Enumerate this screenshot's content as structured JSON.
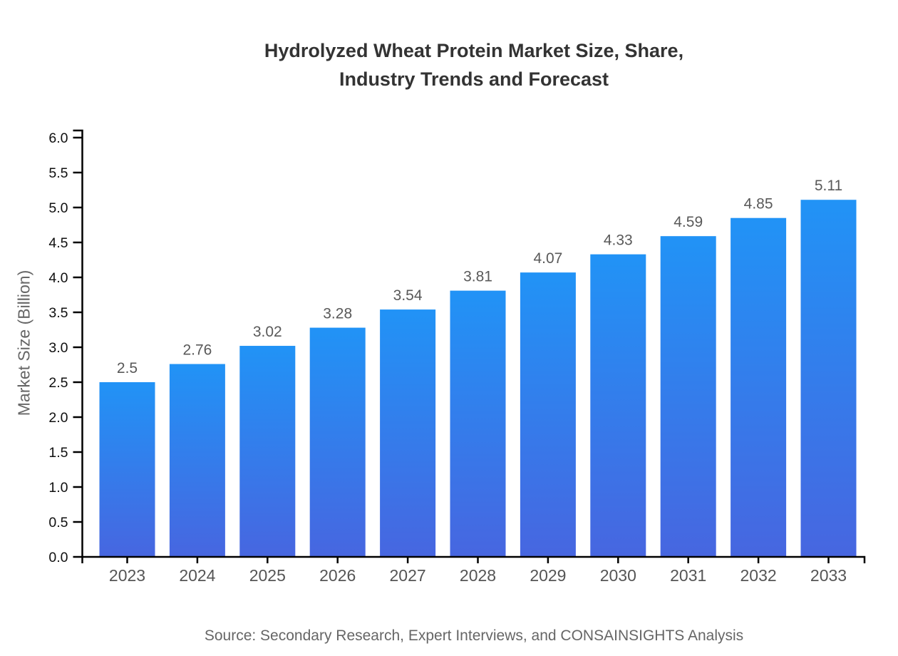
{
  "title": {
    "line1": "Hydrolyzed Wheat Protein Market Size, Share,",
    "line2": "Industry Trends and Forecast"
  },
  "source": "Source: Secondary Research, Expert Interviews, and CONSAINSIGHTS Analysis",
  "chart_data": {
    "type": "bar",
    "title": "Hydrolyzed Wheat Protein Market Size, Share, Industry Trends and Forecast",
    "categories": [
      "2023",
      "2024",
      "2025",
      "2026",
      "2027",
      "2028",
      "2029",
      "2030",
      "2031",
      "2032",
      "2033"
    ],
    "values": [
      2.5,
      2.76,
      3.02,
      3.28,
      3.54,
      3.81,
      4.07,
      4.33,
      4.59,
      4.85,
      5.11
    ],
    "value_labels": [
      "2.5",
      "2.76",
      "3.02",
      "3.28",
      "3.54",
      "3.81",
      "4.07",
      "4.33",
      "4.59",
      "4.85",
      "5.11"
    ],
    "xlabel": "",
    "ylabel": "Market Size (Billion)",
    "ylim": [
      0.0,
      6.0
    ],
    "ytick_step": 0.5,
    "ytick_decimals": 1,
    "grid": false,
    "legend": false,
    "colors": {
      "bar_gradient_top": "#2193f6",
      "bar_gradient_bottom": "#4766e0",
      "axis": "#000000",
      "ytick_label": "#0f0f0f",
      "xtick_label": "#555555",
      "value_label": "#595959",
      "title": "#333333",
      "ylabel": "#666666",
      "source": "#666666"
    }
  }
}
